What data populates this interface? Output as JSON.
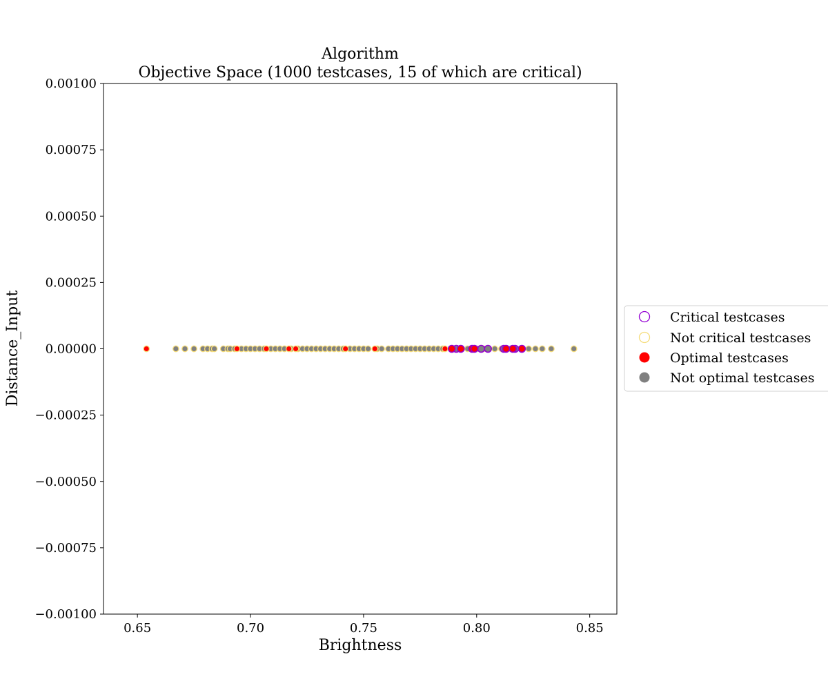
{
  "chart_data": {
    "type": "scatter",
    "title": "Algorithm",
    "subtitle": "Objective Space (1000 testcases, 15 of which are critical)",
    "xlabel": "Brightness",
    "ylabel": "Distance_Input",
    "xlim": [
      0.635,
      0.862
    ],
    "ylim": [
      -0.001,
      0.001
    ],
    "x_ticks": [
      0.65,
      0.7,
      0.75,
      0.8,
      0.85
    ],
    "x_tick_labels": [
      "0.65",
      "0.70",
      "0.75",
      "0.80",
      "0.85"
    ],
    "y_ticks": [
      0.001,
      0.00075,
      0.0005,
      0.00025,
      0.0,
      -0.00025,
      -0.0005,
      -0.00075,
      -0.001
    ],
    "y_tick_labels": [
      "0.00100",
      "0.00075",
      "0.00050",
      "0.00025",
      "0.00000",
      "−0.00025",
      "−0.00050",
      "−0.00075",
      "−0.00100"
    ],
    "grid": false,
    "legend_position": "right",
    "legend": [
      {
        "label": "Critical testcases",
        "marker": "hollow",
        "color": "#9400d3"
      },
      {
        "label": "Not critical testcases",
        "marker": "hollow",
        "color": "#f5dc7a"
      },
      {
        "label": "Optimal testcases",
        "marker": "filled",
        "color": "#ff0000"
      },
      {
        "label": "Not optimal testcases",
        "marker": "filled",
        "color": "#808080"
      }
    ],
    "series": [
      {
        "name": "Not critical testcases / Not optimal testcases",
        "edge_color": "#f5dc7a",
        "fill_color": "#808080",
        "x": [
          0.667,
          0.671,
          0.675,
          0.679,
          0.681,
          0.683,
          0.684,
          0.688,
          0.69,
          0.691,
          0.693,
          0.696,
          0.698,
          0.7,
          0.702,
          0.704,
          0.706,
          0.709,
          0.711,
          0.713,
          0.715,
          0.718,
          0.721,
          0.723,
          0.725,
          0.727,
          0.729,
          0.731,
          0.733,
          0.735,
          0.737,
          0.739,
          0.741,
          0.744,
          0.746,
          0.748,
          0.75,
          0.752,
          0.756,
          0.758,
          0.761,
          0.763,
          0.765,
          0.767,
          0.769,
          0.771,
          0.773,
          0.775,
          0.777,
          0.779,
          0.781,
          0.783,
          0.785,
          0.796,
          0.8,
          0.803,
          0.808,
          0.811,
          0.815,
          0.823,
          0.826,
          0.829,
          0.833,
          0.843
        ],
        "y": [
          0,
          0,
          0,
          0,
          0,
          0,
          0,
          0,
          0,
          0,
          0,
          0,
          0,
          0,
          0,
          0,
          0,
          0,
          0,
          0,
          0,
          0,
          0,
          0,
          0,
          0,
          0,
          0,
          0,
          0,
          0,
          0,
          0,
          0,
          0,
          0,
          0,
          0,
          0,
          0,
          0,
          0,
          0,
          0,
          0,
          0,
          0,
          0,
          0,
          0,
          0,
          0,
          0,
          0,
          0,
          0,
          0,
          0,
          0,
          0,
          0,
          0,
          0,
          0
        ]
      },
      {
        "name": "Not critical testcases / Optimal testcases",
        "edge_color": "#f5dc7a",
        "fill_color": "#ff0000",
        "x": [
          0.654,
          0.694,
          0.707,
          0.717,
          0.72,
          0.742,
          0.755,
          0.786
        ],
        "y": [
          0,
          0,
          0,
          0,
          0,
          0,
          0,
          0
        ]
      },
      {
        "name": "Critical testcases / Not optimal testcases",
        "edge_color": "#9400d3",
        "fill_color": "#808080",
        "x": [
          0.791,
          0.802,
          0.805,
          0.812,
          0.817
        ],
        "y": [
          0,
          0,
          0,
          0,
          0
        ]
      },
      {
        "name": "Critical testcases / Optimal testcases",
        "edge_color": "#9400d3",
        "fill_color": "#ff0000",
        "x": [
          0.789,
          0.793,
          0.798,
          0.799,
          0.813,
          0.816,
          0.82
        ],
        "y": [
          0,
          0,
          0,
          0,
          0,
          0,
          0
        ]
      }
    ]
  }
}
